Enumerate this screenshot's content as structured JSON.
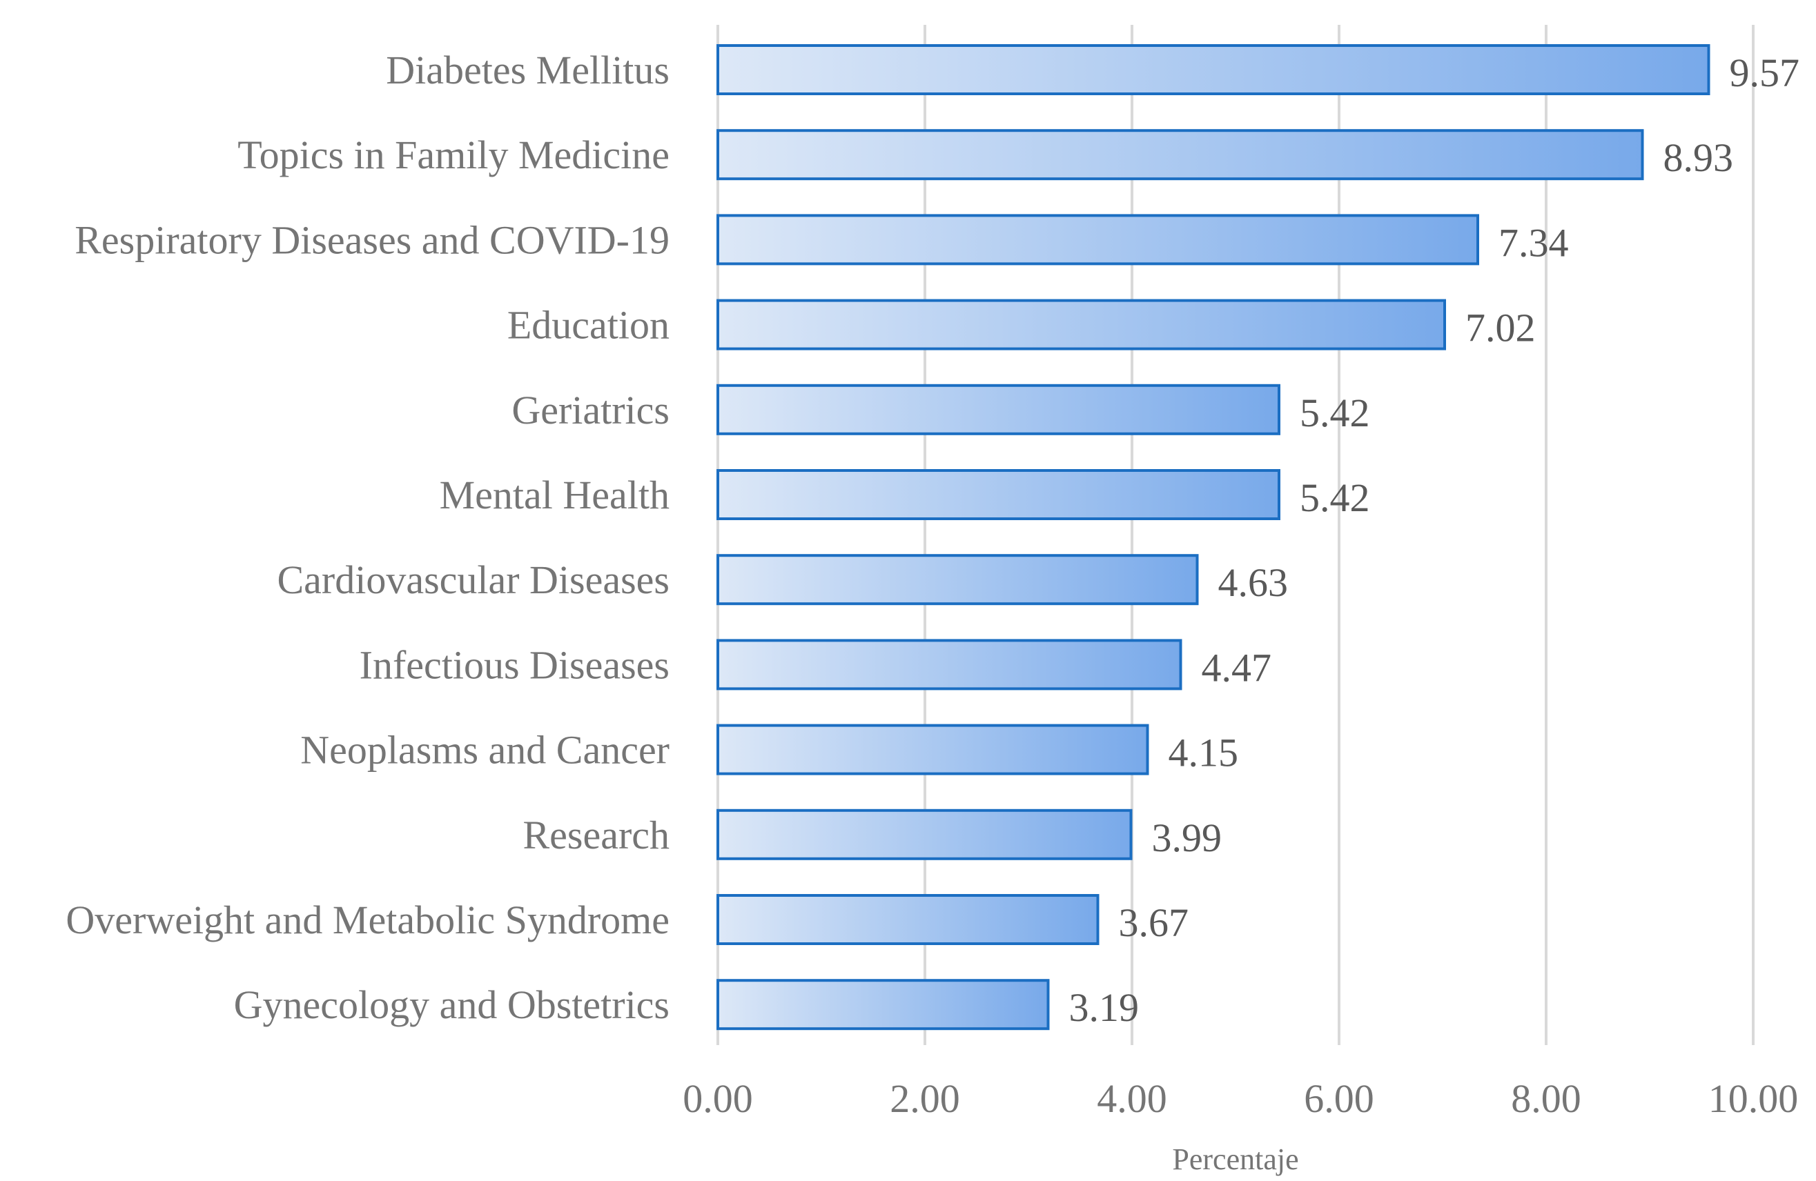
{
  "chart_data": {
    "type": "bar",
    "orientation": "horizontal",
    "categories": [
      "Diabetes Mellitus",
      "Topics in Family Medicine",
      "Respiratory Diseases and COVID-19",
      "Education",
      "Geriatrics",
      "Mental Health",
      "Cardiovascular Diseases",
      "Infectious Diseases",
      "Neoplasms and Cancer",
      "Research",
      "Overweight and Metabolic Syndrome",
      "Gynecology and Obstetrics"
    ],
    "values": [
      9.57,
      8.93,
      7.34,
      7.02,
      5.42,
      5.42,
      4.63,
      4.47,
      4.15,
      3.99,
      3.67,
      3.19
    ],
    "value_labels": [
      "9.57",
      "8.93",
      "7.34",
      "7.02",
      "5.42",
      "5.42",
      "4.63",
      "4.47",
      "4.15",
      "3.99",
      "3.67",
      "3.19"
    ],
    "ticks": [
      0,
      2,
      4,
      6,
      8,
      10
    ],
    "tick_labels": [
      "0.00",
      "2.00",
      "4.00",
      "6.00",
      "8.00",
      "10.00"
    ],
    "xlim": [
      0,
      10
    ],
    "xlabel": "Percentaje",
    "ylabel": "",
    "title": "",
    "grid": true,
    "colors": {
      "bar_start": "#dde8f7",
      "bar_end": "#78a9ea",
      "bar_border": "#1b6ec2",
      "grid": "#d9d9d9"
    }
  }
}
